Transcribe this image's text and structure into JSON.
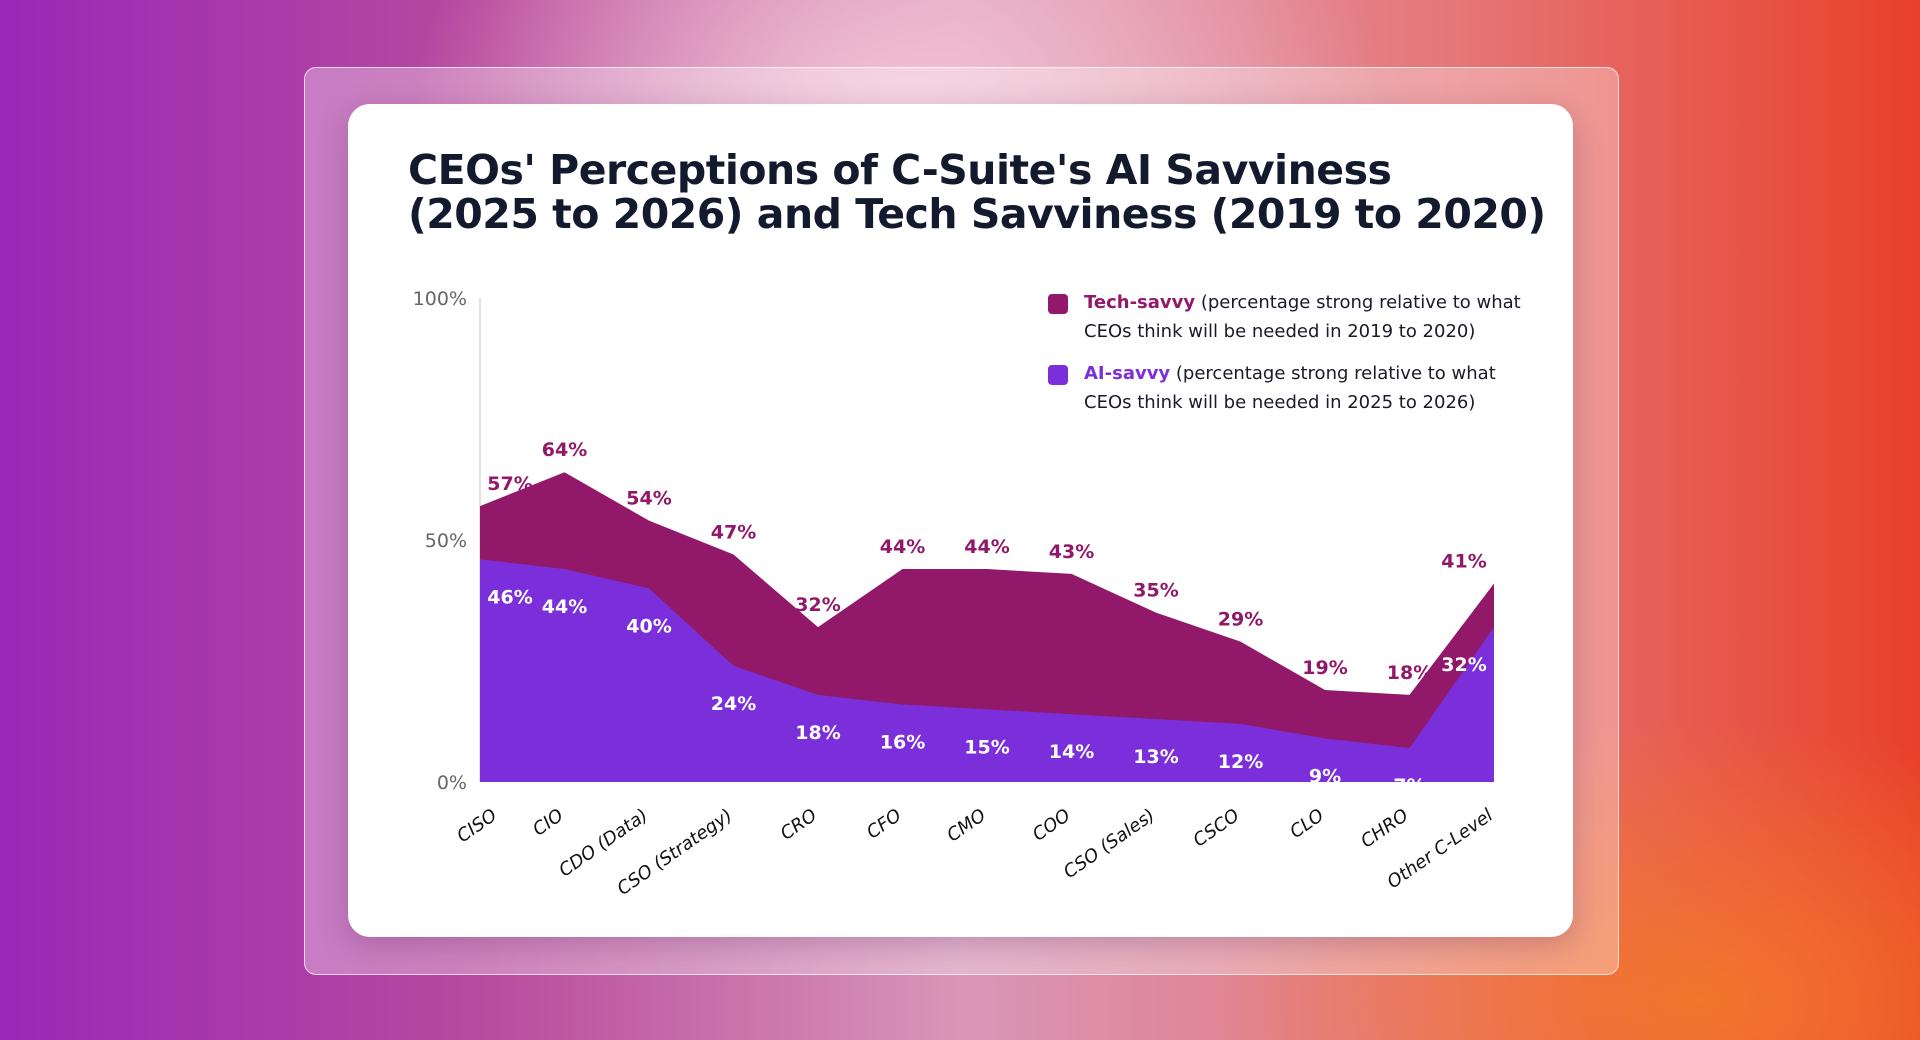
{
  "title_line1": "CEOs' Perceptions of C-Suite's AI Savviness",
  "title_line2": "(2025 to 2026) and Tech Savviness (2019 to 2020)",
  "colors": {
    "tech": "#92186a",
    "ai": "#7b2fdb"
  },
  "legend": [
    {
      "name": "Tech-savvy",
      "desc1": " (percentage strong relative to what",
      "desc2": "CEOs think will be needed in 2019 to 2020)"
    },
    {
      "name": "AI-savvy",
      "desc1": " (percentage strong relative to what",
      "desc2": "CEOs think will be needed in 2025 to 2026)"
    }
  ],
  "chart_data": {
    "type": "area",
    "title": "CEOs' Perceptions of C-Suite's AI Savviness (2025 to 2026) and Tech Savviness (2019 to 2020)",
    "categories": [
      "CISO",
      "CIO",
      "CDO (Data)",
      "CSO (Strategy)",
      "CRO",
      "CFO",
      "CMO",
      "COO",
      "CSO (Sales)",
      "CSCO",
      "CLO",
      "CHRO",
      "Other C-Level"
    ],
    "series": [
      {
        "name": "Tech-savvy",
        "values": [
          57,
          64,
          54,
          47,
          32,
          44,
          44,
          43,
          35,
          29,
          19,
          18,
          41
        ]
      },
      {
        "name": "AI-savvy",
        "values": [
          46,
          44,
          40,
          24,
          18,
          16,
          15,
          14,
          13,
          12,
          9,
          7,
          32
        ]
      }
    ],
    "yticks": [
      "0%",
      "50%",
      "100%"
    ],
    "ylim": [
      0,
      100
    ],
    "grid": false,
    "legend_position": "top-right"
  }
}
